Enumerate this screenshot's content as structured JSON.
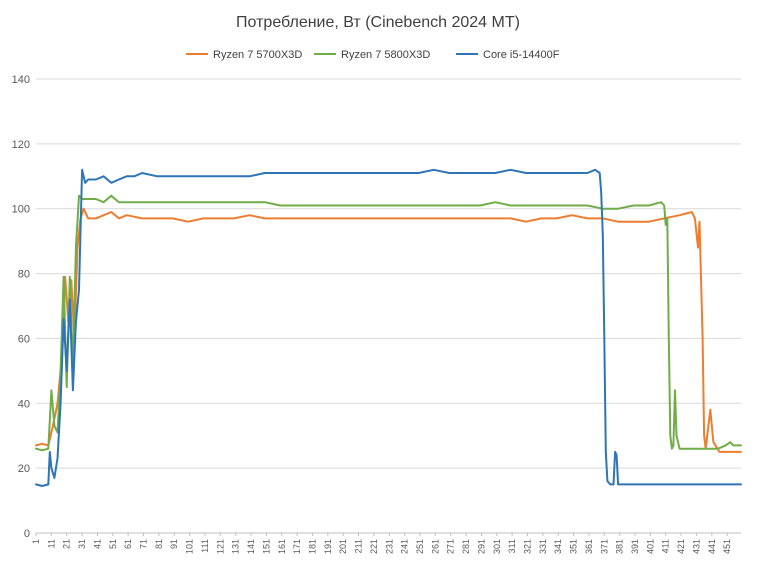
{
  "chart_data": {
    "type": "line",
    "title": "Потребление, Вт (Cinebench 2024 MT)",
    "xlabel": "",
    "ylabel": "",
    "ylim": [
      0,
      140
    ],
    "yticks": [
      0,
      20,
      40,
      60,
      80,
      100,
      120,
      140
    ],
    "xlim": [
      1,
      460
    ],
    "xticks": [
      1,
      11,
      21,
      31,
      41,
      51,
      61,
      71,
      81,
      91,
      101,
      111,
      121,
      131,
      141,
      151,
      161,
      171,
      181,
      191,
      201,
      211,
      221,
      231,
      241,
      251,
      261,
      271,
      281,
      291,
      301,
      311,
      321,
      331,
      341,
      351,
      361,
      371,
      381,
      391,
      401,
      411,
      421,
      431,
      441,
      451
    ],
    "grid": true,
    "legend_position": "top",
    "series": [
      {
        "name": "Ryzen 7 5700X3D",
        "color": "#ED7D31",
        "points": [
          [
            1,
            27
          ],
          [
            5,
            27.5
          ],
          [
            9,
            27
          ],
          [
            12,
            33
          ],
          [
            15,
            40
          ],
          [
            18,
            55
          ],
          [
            20,
            79
          ],
          [
            22,
            65
          ],
          [
            24,
            78
          ],
          [
            26,
            60
          ],
          [
            28,
            88
          ],
          [
            30,
            97
          ],
          [
            32,
            100
          ],
          [
            35,
            97
          ],
          [
            40,
            97
          ],
          [
            45,
            98
          ],
          [
            50,
            99
          ],
          [
            55,
            97
          ],
          [
            60,
            98
          ],
          [
            70,
            97
          ],
          [
            80,
            97
          ],
          [
            90,
            97
          ],
          [
            100,
            96
          ],
          [
            110,
            97
          ],
          [
            120,
            97
          ],
          [
            130,
            97
          ],
          [
            140,
            98
          ],
          [
            150,
            97
          ],
          [
            160,
            97
          ],
          [
            170,
            97
          ],
          [
            180,
            97
          ],
          [
            190,
            97
          ],
          [
            200,
            97
          ],
          [
            210,
            97
          ],
          [
            220,
            97
          ],
          [
            230,
            97
          ],
          [
            240,
            97
          ],
          [
            250,
            97
          ],
          [
            260,
            97
          ],
          [
            270,
            97
          ],
          [
            280,
            97
          ],
          [
            290,
            97
          ],
          [
            300,
            97
          ],
          [
            310,
            97
          ],
          [
            320,
            96
          ],
          [
            330,
            97
          ],
          [
            340,
            97
          ],
          [
            350,
            98
          ],
          [
            360,
            97
          ],
          [
            370,
            97
          ],
          [
            380,
            96
          ],
          [
            390,
            96
          ],
          [
            400,
            96
          ],
          [
            410,
            97
          ],
          [
            420,
            98
          ],
          [
            428,
            99
          ],
          [
            430,
            97
          ],
          [
            432,
            88
          ],
          [
            433,
            96
          ],
          [
            435,
            60
          ],
          [
            436,
            30
          ],
          [
            437,
            26
          ],
          [
            440,
            38
          ],
          [
            442,
            28
          ],
          [
            446,
            25
          ],
          [
            450,
            25
          ],
          [
            455,
            25
          ],
          [
            460,
            25
          ]
        ]
      },
      {
        "name": "Ryzen 7 5800X3D",
        "color": "#70AD47",
        "points": [
          [
            1,
            26
          ],
          [
            5,
            25.5
          ],
          [
            9,
            26
          ],
          [
            11,
            44
          ],
          [
            13,
            33
          ],
          [
            15,
            31
          ],
          [
            17,
            50
          ],
          [
            19,
            79
          ],
          [
            21,
            45
          ],
          [
            23,
            79
          ],
          [
            25,
            50
          ],
          [
            27,
            88
          ],
          [
            29,
            104
          ],
          [
            31,
            103
          ],
          [
            35,
            103
          ],
          [
            40,
            103
          ],
          [
            45,
            102
          ],
          [
            50,
            104
          ],
          [
            55,
            102
          ],
          [
            60,
            102
          ],
          [
            70,
            102
          ],
          [
            80,
            102
          ],
          [
            90,
            102
          ],
          [
            100,
            102
          ],
          [
            110,
            102
          ],
          [
            120,
            102
          ],
          [
            130,
            102
          ],
          [
            140,
            102
          ],
          [
            150,
            102
          ],
          [
            160,
            101
          ],
          [
            170,
            101
          ],
          [
            180,
            101
          ],
          [
            190,
            101
          ],
          [
            200,
            101
          ],
          [
            210,
            101
          ],
          [
            220,
            101
          ],
          [
            230,
            101
          ],
          [
            240,
            101
          ],
          [
            250,
            101
          ],
          [
            260,
            101
          ],
          [
            270,
            101
          ],
          [
            280,
            101
          ],
          [
            290,
            101
          ],
          [
            300,
            102
          ],
          [
            310,
            101
          ],
          [
            320,
            101
          ],
          [
            330,
            101
          ],
          [
            340,
            101
          ],
          [
            350,
            101
          ],
          [
            360,
            101
          ],
          [
            370,
            100
          ],
          [
            380,
            100
          ],
          [
            390,
            101
          ],
          [
            400,
            101
          ],
          [
            408,
            102
          ],
          [
            410,
            101
          ],
          [
            411,
            95
          ],
          [
            412,
            97
          ],
          [
            413,
            60
          ],
          [
            414,
            30
          ],
          [
            415,
            26
          ],
          [
            416,
            27
          ],
          [
            417,
            44
          ],
          [
            418,
            30
          ],
          [
            420,
            26
          ],
          [
            425,
            26
          ],
          [
            430,
            26
          ],
          [
            435,
            26
          ],
          [
            440,
            26
          ],
          [
            445,
            26
          ],
          [
            450,
            27
          ],
          [
            453,
            28
          ],
          [
            455,
            27
          ],
          [
            460,
            27
          ]
        ]
      },
      {
        "name": "Core i5-14400F",
        "color": "#2E75B6",
        "points": [
          [
            1,
            15
          ],
          [
            5,
            14.5
          ],
          [
            9,
            15
          ],
          [
            10,
            25
          ],
          [
            11,
            20
          ],
          [
            13,
            17
          ],
          [
            15,
            23
          ],
          [
            17,
            40
          ],
          [
            19,
            66
          ],
          [
            21,
            50
          ],
          [
            23,
            72
          ],
          [
            25,
            44
          ],
          [
            27,
            65
          ],
          [
            29,
            75
          ],
          [
            31,
            112
          ],
          [
            33,
            108
          ],
          [
            35,
            109
          ],
          [
            40,
            109
          ],
          [
            45,
            110
          ],
          [
            50,
            108
          ],
          [
            55,
            109
          ],
          [
            60,
            110
          ],
          [
            65,
            110
          ],
          [
            70,
            111
          ],
          [
            80,
            110
          ],
          [
            90,
            110
          ],
          [
            100,
            110
          ],
          [
            110,
            110
          ],
          [
            120,
            110
          ],
          [
            130,
            110
          ],
          [
            140,
            110
          ],
          [
            150,
            111
          ],
          [
            160,
            111
          ],
          [
            170,
            111
          ],
          [
            180,
            111
          ],
          [
            190,
            111
          ],
          [
            200,
            111
          ],
          [
            210,
            111
          ],
          [
            220,
            111
          ],
          [
            230,
            111
          ],
          [
            240,
            111
          ],
          [
            250,
            111
          ],
          [
            260,
            112
          ],
          [
            270,
            111
          ],
          [
            280,
            111
          ],
          [
            290,
            111
          ],
          [
            300,
            111
          ],
          [
            310,
            112
          ],
          [
            320,
            111
          ],
          [
            330,
            111
          ],
          [
            340,
            111
          ],
          [
            350,
            111
          ],
          [
            360,
            111
          ],
          [
            365,
            112
          ],
          [
            368,
            111
          ],
          [
            369,
            105
          ],
          [
            370,
            92
          ],
          [
            371,
            60
          ],
          [
            372,
            25
          ],
          [
            373,
            16
          ],
          [
            375,
            15
          ],
          [
            377,
            15
          ],
          [
            378,
            25
          ],
          [
            379,
            24
          ],
          [
            380,
            15
          ],
          [
            385,
            15
          ],
          [
            390,
            15
          ],
          [
            400,
            15
          ],
          [
            410,
            15
          ],
          [
            420,
            15
          ],
          [
            430,
            15
          ],
          [
            440,
            15
          ],
          [
            450,
            15
          ],
          [
            455,
            15
          ],
          [
            460,
            15
          ]
        ]
      }
    ]
  }
}
